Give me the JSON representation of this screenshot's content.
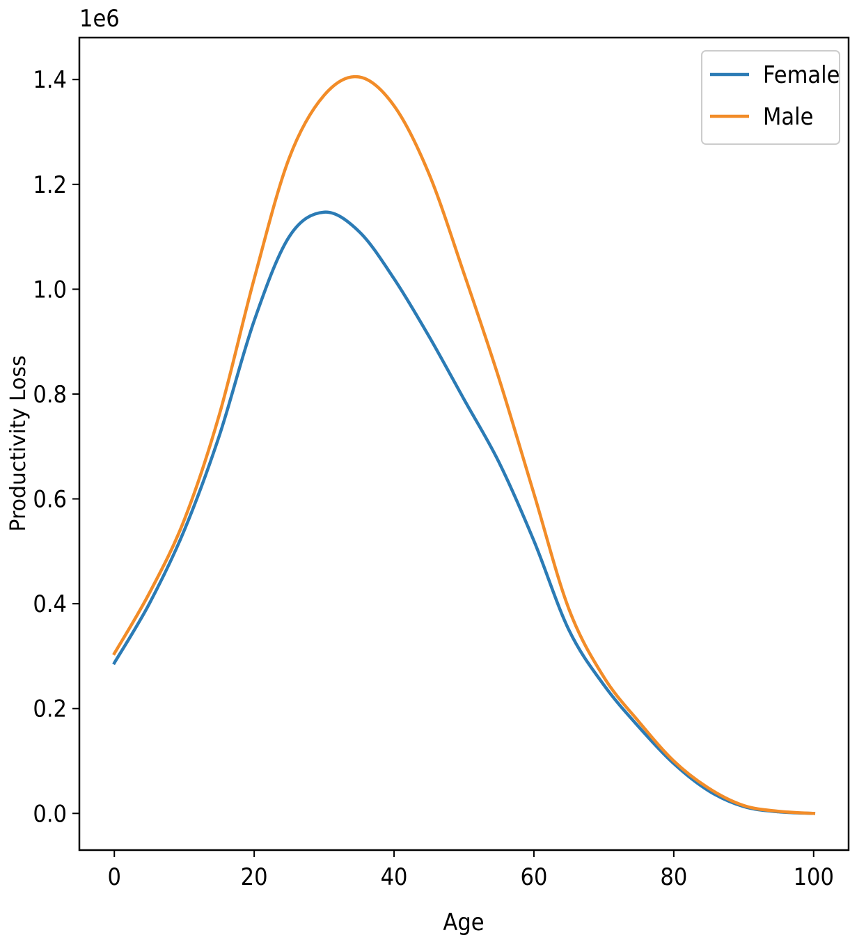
{
  "chart_data": {
    "type": "line",
    "title": "",
    "xlabel": "Age",
    "ylabel": "Productivity Loss",
    "y_offset_label": "1e6",
    "xlim": [
      -5,
      105
    ],
    "ylim": [
      -0.07,
      1.48
    ],
    "x_ticks": [
      0,
      20,
      40,
      60,
      80,
      100
    ],
    "x_tick_labels": [
      "0",
      "20",
      "40",
      "60",
      "80",
      "100"
    ],
    "y_ticks": [
      0.0,
      0.2,
      0.4,
      0.6,
      0.8,
      1.0,
      1.2,
      1.4
    ],
    "y_tick_labels": [
      "0.0",
      "0.2",
      "0.4",
      "0.6",
      "0.8",
      "1.0",
      "1.2",
      "1.4"
    ],
    "y_unit_multiplier": 1000000,
    "grid": false,
    "legend_position": "top-right",
    "x": [
      0,
      5,
      10,
      15,
      20,
      25,
      30,
      35,
      40,
      45,
      50,
      55,
      60,
      65,
      70,
      75,
      80,
      85,
      90,
      95,
      100
    ],
    "series": [
      {
        "name": "Female",
        "color": "#2b7bb5",
        "values": [
          0.287,
          0.4,
          0.54,
          0.72,
          0.94,
          1.1,
          1.147,
          1.11,
          1.02,
          0.91,
          0.79,
          0.67,
          0.52,
          0.35,
          0.245,
          0.165,
          0.095,
          0.043,
          0.013,
          0.003,
          0.0
        ]
      },
      {
        "name": "Male",
        "color": "#f28c28",
        "values": [
          0.305,
          0.42,
          0.56,
          0.76,
          1.02,
          1.25,
          1.37,
          1.405,
          1.35,
          1.22,
          1.03,
          0.83,
          0.61,
          0.39,
          0.26,
          0.175,
          0.1,
          0.048,
          0.015,
          0.004,
          0.0
        ]
      }
    ]
  }
}
